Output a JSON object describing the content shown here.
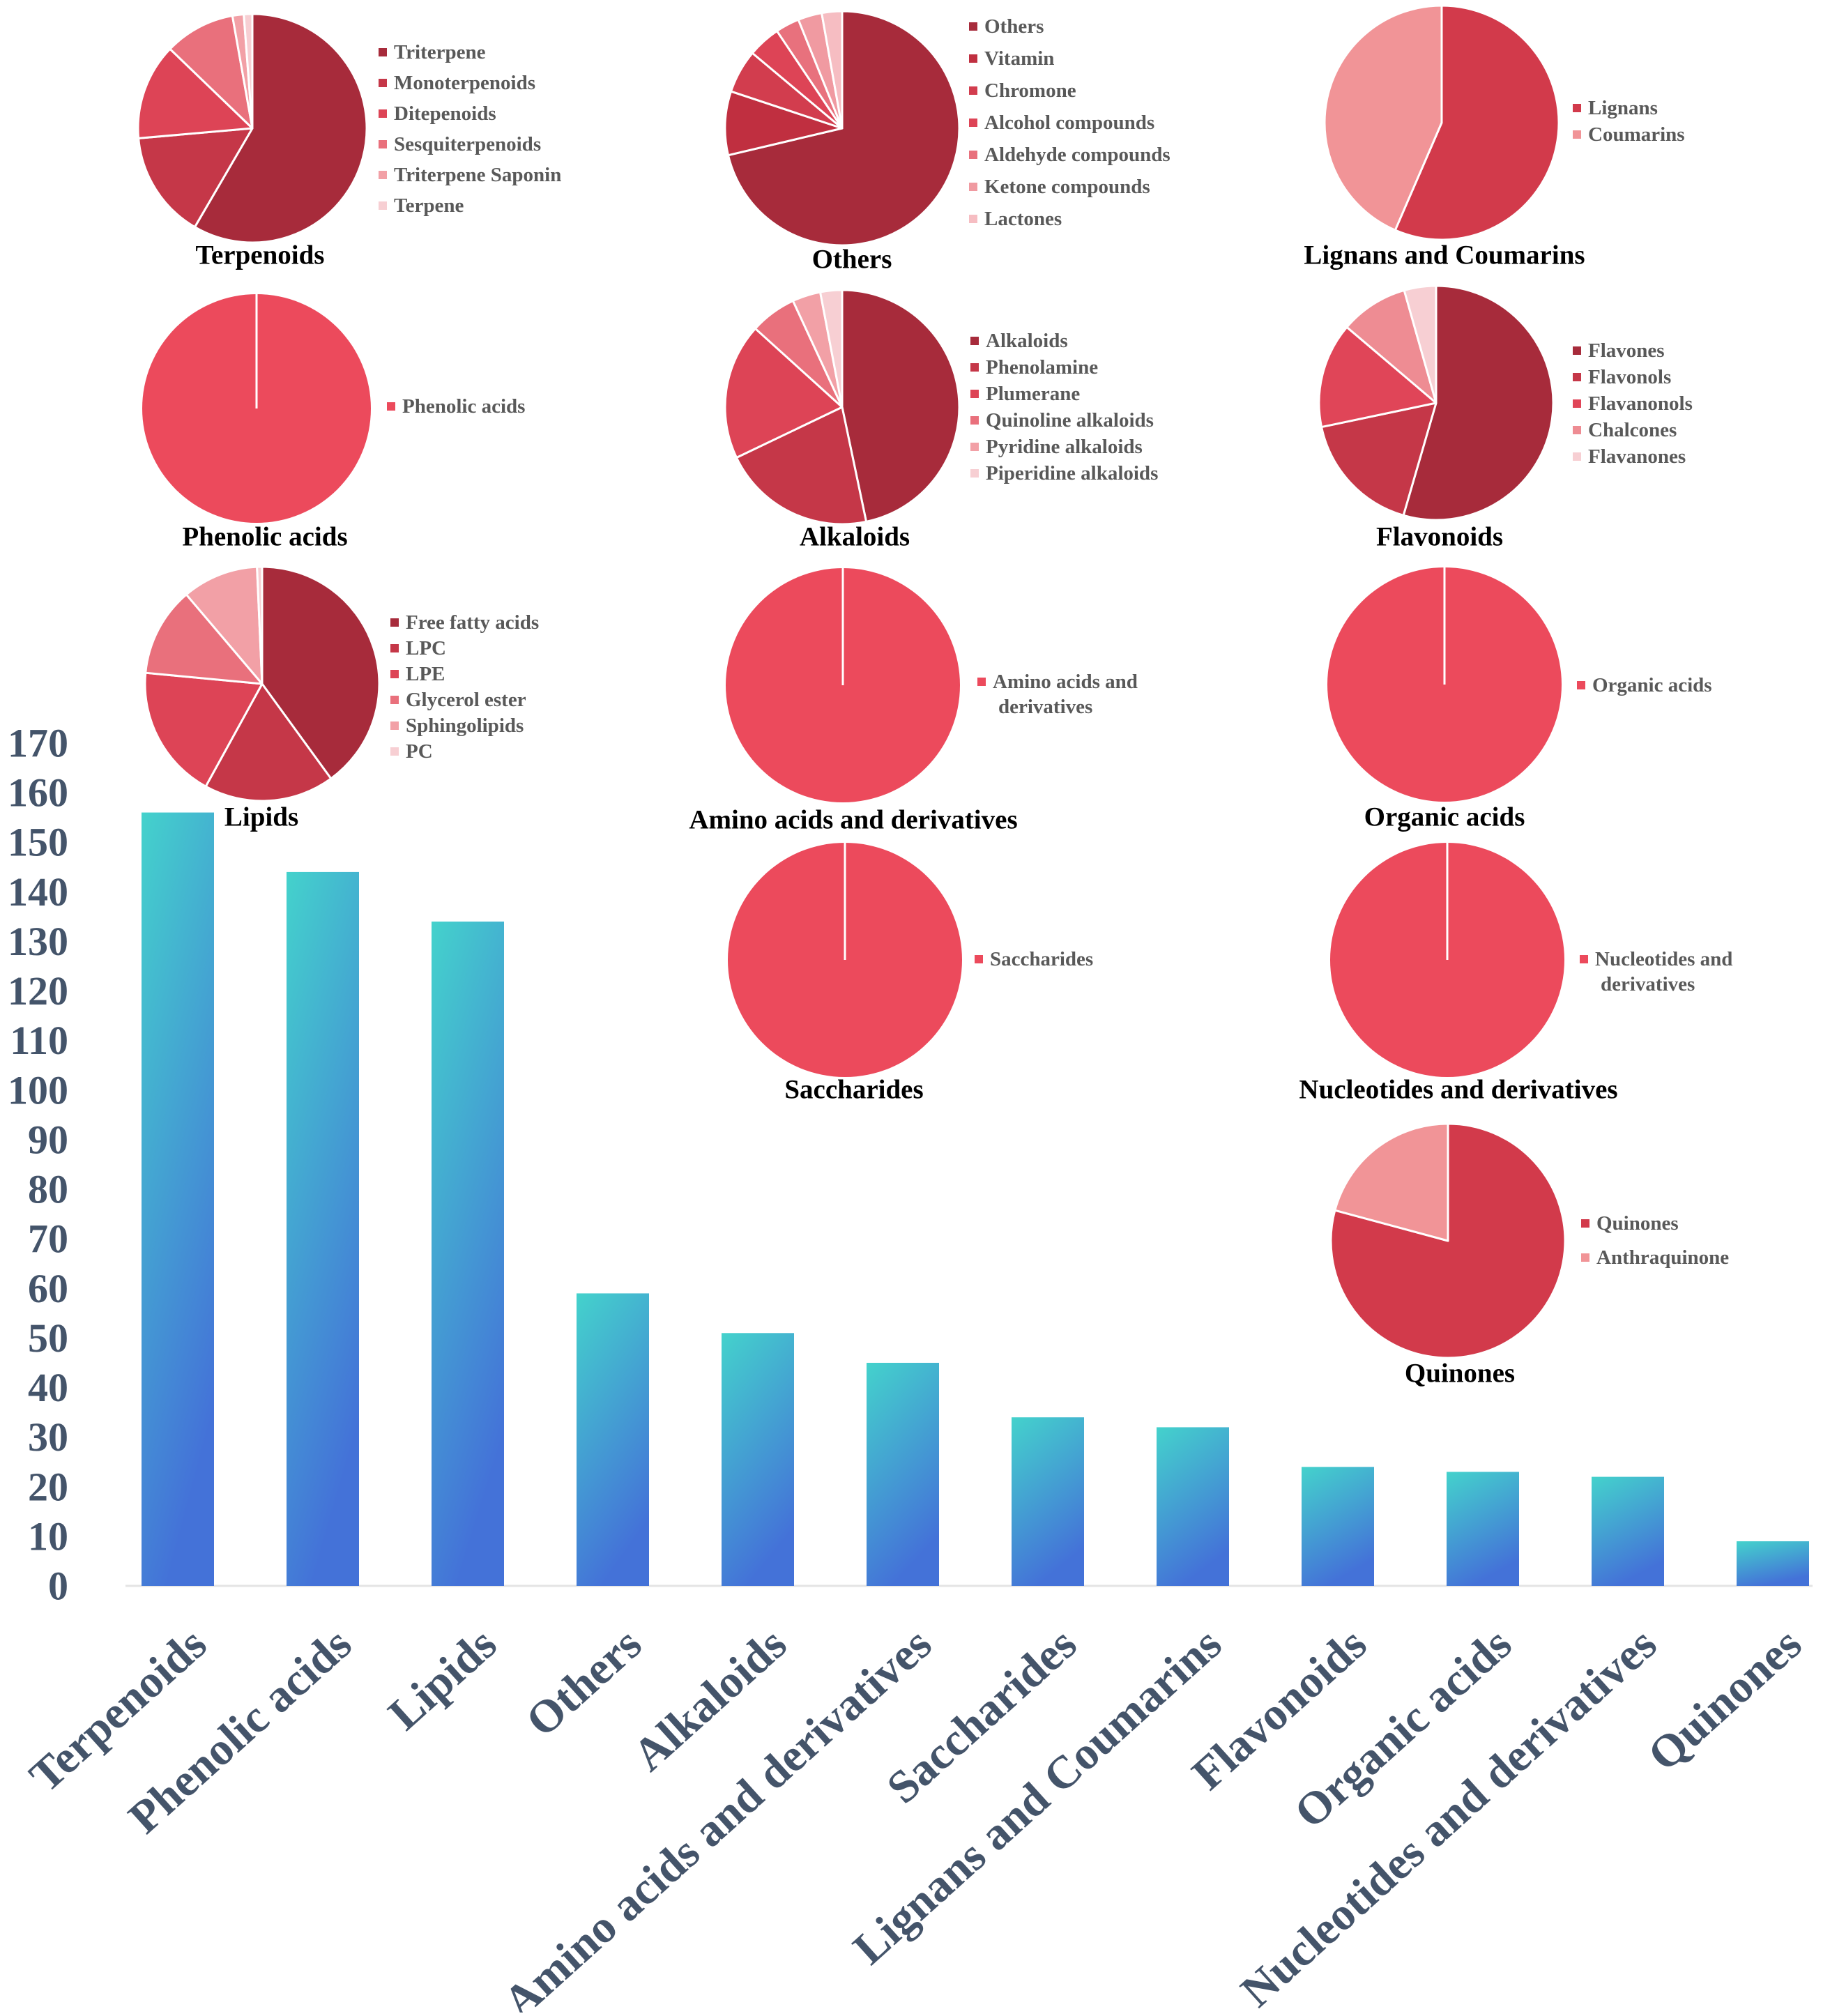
{
  "colors": {
    "axis_text": "#44546a",
    "bar_top": "#44d2cc",
    "bar_bottom": "#4472d8",
    "baseline": "#e4e4e4",
    "pie_divider": "#ffffff",
    "title_text": "#000000",
    "legend_text": "#595959"
  },
  "chart_data": [
    {
      "type": "bar",
      "title": "",
      "xlabel": "",
      "ylabel": "",
      "ylim": [
        0,
        170
      ],
      "yticks": [
        0,
        10,
        20,
        30,
        40,
        50,
        60,
        70,
        80,
        90,
        100,
        110,
        120,
        130,
        140,
        150,
        160,
        170
      ],
      "grid": false,
      "categories": [
        "Terpenoids",
        "Phenolic acids",
        "Lipids",
        "Others",
        "Alkaloids",
        "Amino acids and derivatives",
        "Saccharides",
        "Lignans and Coumarins",
        "Flavonoids",
        "Organic acids",
        "Nucleotides and derivatives",
        "Quinones"
      ],
      "values": [
        156,
        144,
        134,
        59,
        51,
        45,
        34,
        32,
        24,
        23,
        22,
        9
      ]
    },
    {
      "type": "pie",
      "title": "Terpenoids",
      "labels": [
        "Triterpene",
        "Monoterpenoids",
        "Ditepenoids",
        "Sesquiterpenoids",
        "Triterpene Saponin",
        "Terpene"
      ],
      "values": [
        58.4,
        15.2,
        13.6,
        10.0,
        1.6,
        1.2
      ],
      "colors": [
        "#a72b3b",
        "#c53748",
        "#dd4456",
        "#e9707c",
        "#f2a0a6",
        "#f7cfd3"
      ]
    },
    {
      "type": "pie",
      "title": "Others",
      "labels": [
        "Others",
        "Vitamin",
        "Chromone",
        "Alcohol compounds",
        "Aldehyde compounds",
        "Ketone compounds",
        "Lactones"
      ],
      "values": [
        71.3,
        8.8,
        6.0,
        4.5,
        3.3,
        3.3,
        2.8
      ],
      "colors": [
        "#a72b3b",
        "#c02f40",
        "#d23d4e",
        "#dd4456",
        "#e8717d",
        "#f09aa1",
        "#f6bdc2"
      ]
    },
    {
      "type": "pie",
      "title": "Lignans and Coumarins",
      "labels": [
        "Lignans",
        "Coumarins"
      ],
      "values": [
        56.5,
        43.5
      ],
      "colors": [
        "#d23a4b",
        "#f19497"
      ]
    },
    {
      "type": "pie",
      "title": "Phenolic acids",
      "labels": [
        "Phenolic acids"
      ],
      "values": [
        100
      ],
      "colors": [
        "#ec4a5c"
      ]
    },
    {
      "type": "pie",
      "title": "Alkaloids",
      "labels": [
        "Alkaloids",
        "Phenolamine",
        "Plumerane",
        "Quinoline alkaloids",
        "Pyridine alkaloids",
        "Piperidine alkaloids"
      ],
      "values": [
        46.7,
        21.2,
        18.8,
        6.4,
        3.9,
        3.0
      ],
      "colors": [
        "#a72b3b",
        "#c53748",
        "#dd4456",
        "#e9707c",
        "#f2a0a6",
        "#f7cfd3"
      ]
    },
    {
      "type": "pie",
      "title": "Flavonoids",
      "labels": [
        "Flavones",
        "Flavonols",
        "Flavanonols",
        "Chalcones",
        "Flavanones"
      ],
      "values": [
        54.5,
        17.2,
        14.5,
        9.4,
        4.4
      ],
      "colors": [
        "#a72b3b",
        "#c53748",
        "#e04558",
        "#ee8c93",
        "#f7cfd3"
      ]
    },
    {
      "type": "pie",
      "title": "Lipids",
      "labels": [
        "Free fatty acids",
        "LPC",
        "LPE",
        "Glycerol ester",
        "Sphingolipids",
        "PC"
      ],
      "values": [
        40.0,
        18.0,
        18.5,
        12.3,
        10.5,
        0.7
      ],
      "colors": [
        "#a72b3b",
        "#c53748",
        "#dd4456",
        "#e9707c",
        "#f2a0a6",
        "#f7cfd3"
      ]
    },
    {
      "type": "pie",
      "title": "Amino acids and derivatives",
      "labels": [
        "Amino acids and derivatives"
      ],
      "values": [
        100
      ],
      "colors": [
        "#ec4a5c"
      ]
    },
    {
      "type": "pie",
      "title": "Organic acids",
      "labels": [
        "Organic acids"
      ],
      "values": [
        100
      ],
      "colors": [
        "#ec4a5c"
      ]
    },
    {
      "type": "pie",
      "title": "Saccharides",
      "labels": [
        "Saccharides"
      ],
      "values": [
        100
      ],
      "colors": [
        "#ec4a5c"
      ]
    },
    {
      "type": "pie",
      "title": "Nucleotides and derivatives",
      "labels": [
        "Nucleotides and derivatives"
      ],
      "values": [
        100
      ],
      "colors": [
        "#ec4a5c"
      ]
    },
    {
      "type": "pie",
      "title": "Quinones",
      "labels": [
        "Quinones",
        "Anthraquinone"
      ],
      "values": [
        79.2,
        20.8
      ],
      "colors": [
        "#d23a4b",
        "#f19497"
      ]
    }
  ]
}
